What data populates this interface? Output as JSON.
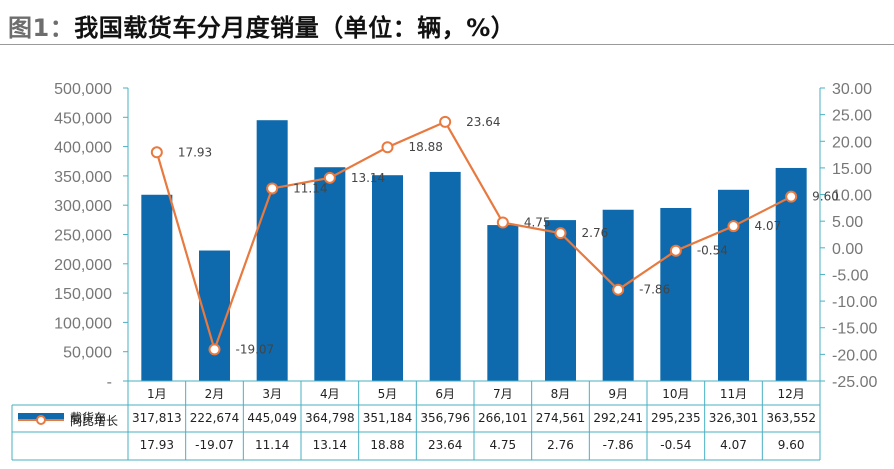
{
  "title": {
    "figure_label": "图1：",
    "text": "我国载货车分月度销量（单位：辆，%）"
  },
  "colors": {
    "bar": "#0e6aad",
    "line": "#e8793f",
    "axis": "#4ab0c2"
  },
  "chart_data": {
    "type": "bar",
    "categories": [
      "1月",
      "2月",
      "3月",
      "4月",
      "5月",
      "6月",
      "7月",
      "8月",
      "9月",
      "10月",
      "11月",
      "12月"
    ],
    "series": [
      {
        "name": "载货车",
        "type": "bar",
        "axis": "left",
        "values": [
          317813,
          222674,
          445049,
          364798,
          351184,
          356796,
          266101,
          274561,
          292241,
          295235,
          326301,
          363552
        ],
        "table_values": [
          "317,813",
          "222,674",
          "445,049",
          "364,798",
          "351,184",
          "356,796",
          "266,101",
          "274,561",
          "292,241",
          "295,235",
          "326,301",
          "363,552"
        ]
      },
      {
        "name": "同比增长",
        "type": "line",
        "axis": "right",
        "values": [
          17.93,
          -19.07,
          11.14,
          13.14,
          18.88,
          23.64,
          4.75,
          2.76,
          -7.86,
          -0.54,
          4.07,
          9.6
        ],
        "table_values": [
          "17.93",
          "-19.07",
          "11.14",
          "13.14",
          "18.88",
          "23.64",
          "4.75",
          "2.76",
          "-7.86",
          "-0.54",
          "4.07",
          "9.60"
        ],
        "point_labels": [
          "17.93",
          "-19.07",
          "11.14",
          "13.14",
          "18.88",
          "23.64",
          "4.75",
          "2.76",
          "-7.86",
          "-0.54",
          "4.07",
          "9.60"
        ]
      }
    ],
    "y_left": {
      "ylim": [
        0,
        500000
      ],
      "ticks": [
        "-",
        "50,000",
        "100,000",
        "150,000",
        "200,000",
        "250,000",
        "300,000",
        "350,000",
        "400,000",
        "450,000",
        "500,000"
      ]
    },
    "y_right": {
      "ylim": [
        -25,
        30
      ],
      "ticks": [
        "-25.00",
        "-20.00",
        "-15.00",
        "-10.00",
        "-5.00",
        "0.00",
        "5.00",
        "10.00",
        "15.00",
        "20.00",
        "25.00",
        "30.00"
      ]
    },
    "legend": "data-table"
  }
}
